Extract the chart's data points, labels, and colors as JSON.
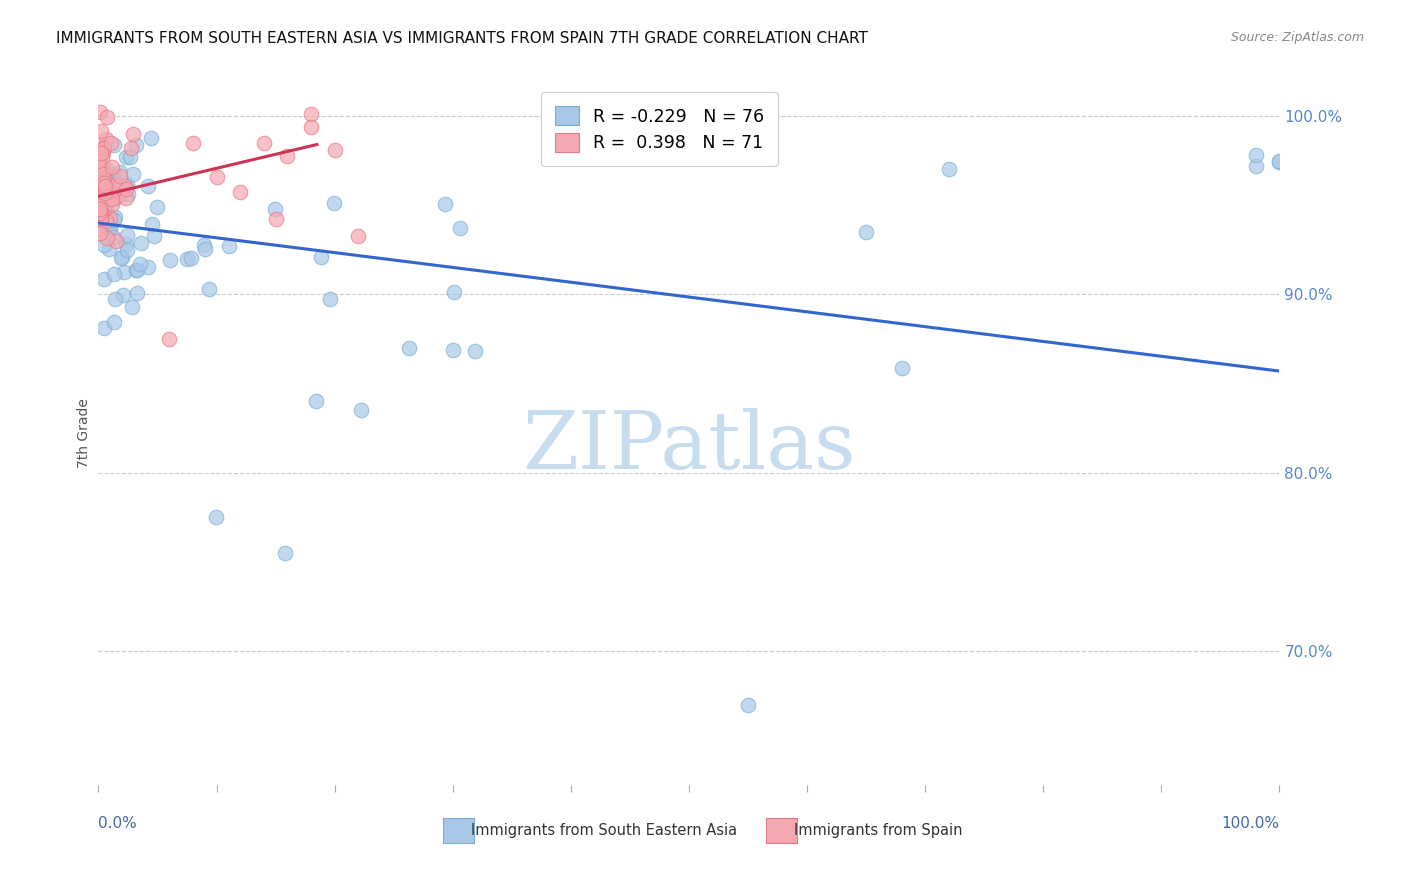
{
  "title": "IMMIGRANTS FROM SOUTH EASTERN ASIA VS IMMIGRANTS FROM SPAIN 7TH GRADE CORRELATION CHART",
  "source": "Source: ZipAtlas.com",
  "ylabel": "7th Grade",
  "ytick_labels": [
    "100.0%",
    "90.0%",
    "80.0%",
    "70.0%"
  ],
  "ytick_values": [
    1.0,
    0.9,
    0.8,
    0.7
  ],
  "xlim": [
    0.0,
    1.0
  ],
  "ylim": [
    0.625,
    1.02
  ],
  "legend_blue_r": "-0.229",
  "legend_blue_n": "76",
  "legend_pink_r": "0.398",
  "legend_pink_n": "71",
  "blue_color": "#A8C8E8",
  "pink_color": "#F4A8B0",
  "blue_edge_color": "#7BAFD4",
  "pink_edge_color": "#E87888",
  "trendline_blue_color": "#3366CC",
  "trendline_pink_color": "#CC3355",
  "watermark_color": "#C8DCF0",
  "grid_color": "#CCCCCC",
  "right_tick_color": "#5588CC",
  "title_color": "#111111",
  "source_color": "#888888",
  "bottom_label_color": "#4466AA",
  "trendline_blue_x0": 0.0,
  "trendline_blue_y0": 0.94,
  "trendline_blue_x1": 1.0,
  "trendline_blue_y1": 0.857,
  "trendline_pink_x0": 0.0,
  "trendline_pink_y0": 0.955,
  "trendline_pink_x1": 0.185,
  "trendline_pink_y1": 0.984
}
